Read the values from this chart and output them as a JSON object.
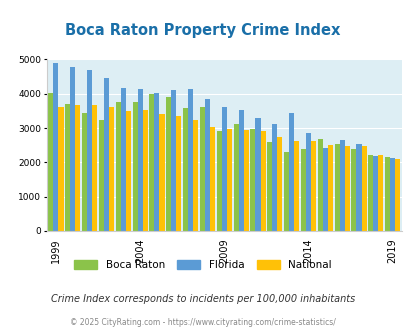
{
  "title": "Boca Raton Property Crime Index",
  "years": [
    1999,
    2000,
    2001,
    2002,
    2003,
    2004,
    2005,
    2006,
    2007,
    2008,
    2009,
    2010,
    2011,
    2012,
    2013,
    2014,
    2015,
    2016,
    2017,
    2018,
    2019
  ],
  "boca_raton": [
    4030,
    3700,
    3450,
    3220,
    3760,
    3760,
    4000,
    3900,
    3580,
    3600,
    2900,
    3130,
    2980,
    2600,
    2310,
    2400,
    2680,
    2530,
    2380,
    2200,
    2150
  ],
  "florida": [
    4900,
    4780,
    4700,
    4450,
    4180,
    4150,
    4030,
    4100,
    4150,
    3850,
    3600,
    3520,
    3300,
    3130,
    3430,
    2850,
    2430,
    2650,
    2530,
    2180,
    2140
  ],
  "national": [
    3620,
    3670,
    3660,
    3600,
    3510,
    3520,
    3400,
    3350,
    3230,
    3040,
    2970,
    2930,
    2920,
    2740,
    2630,
    2610,
    2500,
    2470,
    2470,
    2200,
    2100
  ],
  "boca_color": "#8bc34a",
  "florida_color": "#5b9bd5",
  "national_color": "#ffc107",
  "plot_bg": "#ddeef4",
  "ylabel_max": 5000,
  "subtitle": "Crime Index corresponds to incidents per 100,000 inhabitants",
  "footer": "© 2025 CityRating.com - https://www.cityrating.com/crime-statistics/",
  "tick_years": [
    1999,
    2004,
    2009,
    2014,
    2019
  ],
  "legend_labels": [
    "Boca Raton",
    "Florida",
    "National"
  ]
}
